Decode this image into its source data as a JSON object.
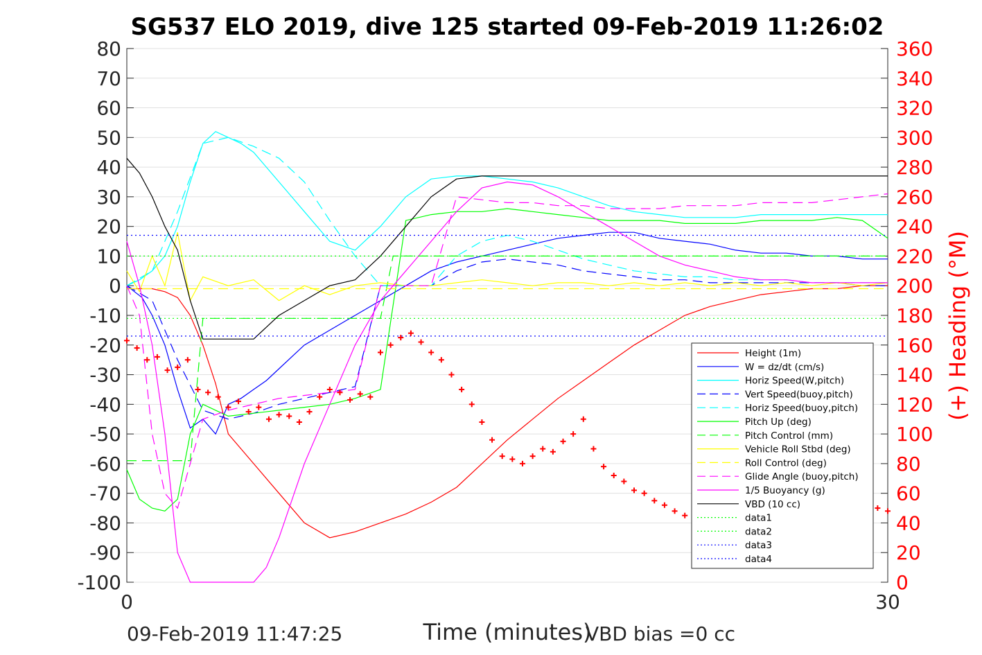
{
  "chart_data": {
    "type": "line",
    "title": "SG537 ELO 2019, dive 125 started 09-Feb-2019 11:26:02",
    "xlabel": "Time (minutes)",
    "ylabel": "",
    "y2label": "(+) Heading (°M)",
    "xlim": [
      0,
      30
    ],
    "ylim": [
      -100,
      80
    ],
    "y2lim": [
      0,
      360
    ],
    "x_ticks": [
      "0",
      "30"
    ],
    "y_ticks": [
      "80",
      "70",
      "60",
      "50",
      "40",
      "30",
      "20",
      "10",
      "0",
      "-10",
      "-20",
      "-30",
      "-40",
      "-50",
      "-60",
      "-70",
      "-80",
      "-90",
      "-100"
    ],
    "y2_ticks": [
      "360",
      "340",
      "320",
      "300",
      "280",
      "260",
      "240",
      "220",
      "200",
      "180",
      "160",
      "140",
      "120",
      "100",
      "80",
      "60",
      "40",
      "20",
      "0"
    ],
    "grid": "horizontal",
    "legend_position": "lower-right",
    "legend": [
      {
        "label": "Height (1m)",
        "color": "#ff0000",
        "dash": "solid"
      },
      {
        "label": "W = dz/dt (cm/s)",
        "color": "#0000ff",
        "dash": "solid"
      },
      {
        "label": "Horiz Speed(W,pitch)",
        "color": "#00ffff",
        "dash": "solid"
      },
      {
        "label": "Vert Speed(buoy,pitch)",
        "color": "#0000ff",
        "dash": "dashed"
      },
      {
        "label": "Horiz Speed(buoy,pitch)",
        "color": "#00ffff",
        "dash": "dashed"
      },
      {
        "label": "Pitch Up (deg)",
        "color": "#00ff00",
        "dash": "solid"
      },
      {
        "label": "Pitch Control (mm)",
        "color": "#00ff00",
        "dash": "dashed"
      },
      {
        "label": "Vehicle Roll Stbd (deg)",
        "color": "#ffff00",
        "dash": "solid"
      },
      {
        "label": "Roll Control (deg)",
        "color": "#ffff00",
        "dash": "dashed"
      },
      {
        "label": "Glide Angle (buoy,pitch)",
        "color": "#ff00ff",
        "dash": "dashed"
      },
      {
        "label": "1/5 Buoyancy (g)",
        "color": "#ff00ff",
        "dash": "solid"
      },
      {
        "label": "VBD (10 cc)",
        "color": "#000000",
        "dash": "solid"
      },
      {
        "label": "data1",
        "color": "#00ff00",
        "dash": "dotted"
      },
      {
        "label": "data2",
        "color": "#00ff00",
        "dash": "dotted"
      },
      {
        "label": "data3",
        "color": "#0000ff",
        "dash": "dotted"
      },
      {
        "label": "data4",
        "color": "#0000ff",
        "dash": "dotted"
      }
    ],
    "series": [
      {
        "name": "Height (1m)",
        "color": "#ff0000",
        "dash": "solid",
        "x": [
          0,
          0.5,
          1,
          1.5,
          2,
          2.5,
          3,
          3.5,
          4,
          5,
          6,
          7,
          8,
          9,
          10,
          11,
          12,
          13,
          14,
          15,
          16,
          17,
          18,
          19,
          20,
          21,
          22,
          23,
          24,
          25,
          26,
          27,
          28,
          29,
          30
        ],
        "y": [
          -1,
          -1,
          -1,
          -2,
          -4,
          -10,
          -20,
          -33,
          -50,
          -60,
          -70,
          -80,
          -85,
          -83,
          -80,
          -77,
          -73,
          -68,
          -60,
          -52,
          -45,
          -38,
          -32,
          -26,
          -20,
          -15,
          -10,
          -7,
          -5,
          -3,
          -2,
          -1,
          -1,
          0,
          0
        ]
      },
      {
        "name": "W = dz/dt (cm/s)",
        "color": "#0000ff",
        "dash": "solid",
        "x": [
          0,
          0.3,
          0.6,
          1,
          1.5,
          2,
          2.5,
          3,
          3.5,
          4,
          4.5,
          5,
          5.5,
          6,
          7,
          8,
          9,
          10,
          11,
          12,
          13,
          14,
          15,
          16,
          17,
          18,
          19,
          20,
          21,
          22,
          23,
          24,
          25,
          26,
          27,
          28,
          29,
          30
        ],
        "y": [
          0,
          -2,
          -4,
          -10,
          -20,
          -35,
          -48,
          -45,
          -50,
          -40,
          -38,
          -35,
          -32,
          -28,
          -20,
          -15,
          -10,
          -5,
          0,
          5,
          8,
          10,
          12,
          14,
          16,
          17,
          18,
          18,
          16,
          15,
          14,
          12,
          11,
          11,
          10,
          10,
          9,
          9
        ]
      },
      {
        "name": "Horiz Speed(W,pitch)",
        "color": "#00ffff",
        "dash": "solid",
        "x": [
          0,
          0.5,
          1,
          1.5,
          2,
          2.5,
          3,
          3.5,
          4,
          4.5,
          5,
          5.5,
          6,
          6.5,
          7,
          8,
          9,
          10,
          11,
          12,
          13,
          14,
          15,
          16,
          17,
          18,
          19,
          20,
          21,
          22,
          23,
          24,
          25,
          26,
          27,
          28,
          29,
          30
        ],
        "y": [
          0,
          2,
          5,
          10,
          20,
          35,
          48,
          52,
          50,
          48,
          45,
          40,
          35,
          30,
          25,
          15,
          12,
          20,
          30,
          36,
          37,
          37,
          36,
          35,
          33,
          30,
          27,
          25,
          24,
          23,
          23,
          23,
          24,
          24,
          24,
          24,
          24,
          24
        ]
      },
      {
        "name": "Vert Speed(buoy,pitch)",
        "color": "#0000ff",
        "dash": "dashed",
        "x": [
          0,
          1,
          2,
          3,
          4,
          5,
          6,
          7,
          8,
          9,
          10,
          11,
          12,
          13,
          14,
          15,
          16,
          17,
          18,
          19,
          20,
          21,
          22,
          23,
          24,
          25,
          26,
          27,
          28,
          29,
          30
        ],
        "y": [
          0,
          -5,
          -25,
          -42,
          -45,
          -43,
          -40,
          -38,
          -36,
          -34,
          0,
          0,
          0,
          5,
          8,
          9,
          8,
          7,
          5,
          4,
          3,
          2,
          2,
          1,
          1,
          1,
          1,
          1,
          1,
          0,
          0
        ]
      },
      {
        "name": "Horiz Speed(buoy,pitch)",
        "color": "#00ffff",
        "dash": "dashed",
        "x": [
          0,
          1,
          2,
          3,
          4,
          5,
          6,
          7,
          8,
          9,
          10,
          11,
          12,
          13,
          14,
          15,
          16,
          17,
          18,
          19,
          20,
          21,
          22,
          23,
          24,
          25,
          26,
          27,
          28,
          29,
          30
        ],
        "y": [
          0,
          5,
          25,
          48,
          50,
          47,
          43,
          35,
          22,
          10,
          0,
          0,
          0,
          10,
          15,
          17,
          15,
          12,
          9,
          7,
          5,
          4,
          3,
          3,
          2,
          2,
          2,
          1,
          1,
          1,
          1
        ]
      },
      {
        "name": "Pitch Up (deg)",
        "color": "#00ff00",
        "dash": "solid",
        "x": [
          0,
          0.5,
          1,
          1.5,
          2,
          2.5,
          3,
          3.5,
          4,
          5,
          6,
          7,
          8,
          9,
          10,
          11,
          12,
          13,
          14,
          15,
          16,
          17,
          18,
          19,
          20,
          21,
          22,
          23,
          24,
          25,
          26,
          27,
          28,
          29,
          30
        ],
        "y": [
          -62,
          -72,
          -75,
          -76,
          -72,
          -50,
          -40,
          -42,
          -44,
          -43,
          -42,
          -41,
          -40,
          -38,
          -35,
          22,
          24,
          25,
          25,
          26,
          25,
          24,
          23,
          22,
          22,
          22,
          21,
          21,
          21,
          22,
          22,
          22,
          23,
          22,
          16
        ]
      },
      {
        "name": "Pitch Control (mm)",
        "color": "#00ff00",
        "dash": "dashed",
        "x": [
          0,
          1,
          2,
          2.5,
          3,
          4,
          5,
          6,
          7,
          8,
          9,
          10,
          10.5,
          11,
          12,
          13,
          14,
          15,
          16,
          17,
          18,
          19,
          20,
          21,
          22,
          23,
          24,
          25,
          26,
          27,
          28,
          29,
          30
        ],
        "y": [
          -59,
          -59,
          -59,
          -59,
          -11,
          -11,
          -11,
          -11,
          -11,
          -11,
          -11,
          -11,
          10,
          10,
          10,
          10,
          10,
          10,
          10,
          10,
          10,
          10,
          10,
          10,
          10,
          10,
          10,
          10,
          10,
          10,
          10,
          10,
          10
        ]
      },
      {
        "name": "Vehicle Roll Stbd (deg)",
        "color": "#ffff00",
        "dash": "solid",
        "x": [
          0,
          0.5,
          1,
          1.5,
          2,
          2.5,
          3,
          4,
          5,
          6,
          7,
          8,
          9,
          10,
          11,
          12,
          13,
          14,
          15,
          16,
          17,
          18,
          19,
          20,
          21,
          22,
          23,
          24,
          25,
          26,
          27,
          28,
          29,
          30
        ],
        "y": [
          5,
          -2,
          10,
          0,
          18,
          -5,
          3,
          0,
          2,
          -5,
          0,
          -3,
          0,
          1,
          0,
          0,
          1,
          2,
          1,
          0,
          1,
          1,
          0,
          1,
          0,
          1,
          0,
          1,
          0,
          1,
          0,
          1,
          0,
          1
        ]
      },
      {
        "name": "Roll Control (deg)",
        "color": "#ffff00",
        "dash": "dashed",
        "x": [
          0,
          5,
          10,
          15,
          20,
          25,
          30
        ],
        "y": [
          -1,
          -1,
          -1,
          -1,
          -1,
          -1,
          -1
        ]
      },
      {
        "name": "Glide Angle (buoy,pitch)",
        "color": "#ff00ff",
        "dash": "dashed",
        "x": [
          0,
          0.5,
          1,
          1.5,
          2,
          2.5,
          3,
          4,
          5,
          6,
          7,
          8,
          9,
          10,
          11,
          12,
          13,
          14,
          15,
          16,
          17,
          18,
          19,
          20,
          21,
          22,
          23,
          24,
          25,
          26,
          27,
          28,
          29,
          30
        ],
        "y": [
          0,
          -10,
          -50,
          -70,
          -75,
          -60,
          -45,
          -42,
          -40,
          -38,
          -37,
          -36,
          -35,
          0,
          0,
          0,
          30,
          29,
          28,
          28,
          27,
          27,
          26,
          26,
          26,
          27,
          27,
          27,
          28,
          28,
          28,
          29,
          30,
          31
        ]
      },
      {
        "name": "1/5 Buoyancy (g)",
        "color": "#ff00ff",
        "dash": "solid",
        "x": [
          0,
          0.5,
          1,
          1.5,
          2,
          2.5,
          3,
          3.5,
          4,
          4.5,
          5,
          5.5,
          6,
          7,
          8,
          9,
          10,
          11,
          12,
          13,
          14,
          15,
          16,
          17,
          18,
          19,
          20,
          21,
          22,
          23,
          24,
          25,
          26,
          27,
          28,
          29,
          30
        ],
        "y": [
          15,
          0,
          -20,
          -50,
          -90,
          -100,
          -100,
          -100,
          -100,
          -100,
          -100,
          -95,
          -85,
          -60,
          -40,
          -20,
          -5,
          5,
          15,
          25,
          33,
          35,
          34,
          30,
          25,
          20,
          15,
          10,
          7,
          5,
          3,
          2,
          2,
          1,
          1,
          1,
          1
        ]
      },
      {
        "name": "VBD (10 cc)",
        "color": "#000000",
        "dash": "solid",
        "x": [
          0,
          0.5,
          1,
          1.5,
          2,
          2.5,
          3,
          3.5,
          4,
          5,
          6,
          7,
          8,
          9,
          10,
          11,
          12,
          13,
          14,
          15,
          16,
          17,
          18,
          19,
          20,
          21,
          22,
          23,
          24,
          25,
          26,
          27,
          28,
          29,
          30
        ],
        "y": [
          43,
          38,
          30,
          20,
          12,
          -5,
          -18,
          -18,
          -18,
          -18,
          -10,
          -5,
          0,
          2,
          10,
          20,
          30,
          36,
          37,
          37,
          37,
          37,
          37,
          37,
          37,
          37,
          37,
          37,
          37,
          37,
          37,
          37,
          37,
          37,
          37
        ]
      },
      {
        "name": "data1",
        "color": "#00ff00",
        "dash": "dotted",
        "x": [
          0,
          30
        ],
        "y": [
          10,
          10
        ]
      },
      {
        "name": "data2",
        "color": "#00ff00",
        "dash": "dotted",
        "x": [
          0,
          30
        ],
        "y": [
          -11,
          -11
        ]
      },
      {
        "name": "data3",
        "color": "#0000ff",
        "dash": "dotted",
        "x": [
          0,
          30
        ],
        "y": [
          17,
          17
        ]
      },
      {
        "name": "data4",
        "color": "#0000ff",
        "dash": "dotted",
        "x": [
          0,
          30
        ],
        "y": [
          -17,
          -17
        ]
      }
    ],
    "heading_points": {
      "color": "#ff0000",
      "x": [
        0,
        0.4,
        0.8,
        1.2,
        1.6,
        2.0,
        2.4,
        2.8,
        3.2,
        3.6,
        4.0,
        4.4,
        4.8,
        5.2,
        5.6,
        6.0,
        6.4,
        6.8,
        7.2,
        7.6,
        8.0,
        8.4,
        8.8,
        9.2,
        9.6,
        10.0,
        10.4,
        10.8,
        11.2,
        11.6,
        12.0,
        12.4,
        12.8,
        13.2,
        13.6,
        14.0,
        14.4,
        14.8,
        15.2,
        15.6,
        16.0,
        16.4,
        16.8,
        17.2,
        17.6,
        18.0,
        18.4,
        18.8,
        19.2,
        19.6,
        20.0,
        20.4,
        20.8,
        21.2,
        21.6,
        22.0,
        22.4,
        22.8,
        23.2,
        23.6,
        24.0,
        24.4,
        24.8,
        25.2,
        25.6,
        26.0,
        26.4,
        26.8,
        27.2,
        27.6,
        28.0,
        28.4,
        28.8,
        29.2,
        29.6,
        30.0
      ],
      "y": [
        163,
        158,
        150,
        152,
        143,
        145,
        150,
        130,
        128,
        125,
        118,
        122,
        115,
        118,
        110,
        113,
        112,
        108,
        115,
        125,
        130,
        128,
        123,
        127,
        125,
        155,
        160,
        165,
        168,
        162,
        155,
        150,
        140,
        130,
        120,
        108,
        96,
        85,
        83,
        80,
        85,
        90,
        88,
        95,
        100,
        110,
        90,
        78,
        72,
        68,
        62,
        60,
        55,
        52,
        48,
        45,
        50,
        55,
        60,
        64,
        65,
        66,
        65,
        60,
        55,
        52,
        50,
        54,
        55,
        58,
        58,
        57,
        55,
        52,
        50,
        48
      ]
    }
  },
  "footer": {
    "timestamp": "09-Feb-2019 11:47:25",
    "vbd_bias": "VBD bias =0 cc"
  }
}
